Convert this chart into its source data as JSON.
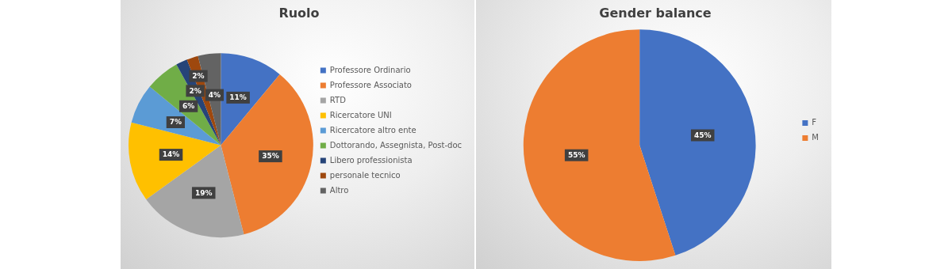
{
  "chart_data": [
    {
      "type": "pie",
      "title": "Ruolo",
      "categories": [
        "Professore Ordinario",
        "Professore Associato",
        "RTD",
        "Ricercatore UNI",
        "Ricercatore altro ente",
        "Dottorando, Assegnista, Post-doc",
        "Libero professionista",
        "personale tecnico",
        "Altro"
      ],
      "values": [
        11,
        35,
        19,
        14,
        7,
        6,
        2,
        2,
        4
      ],
      "colors": [
        "#4472c4",
        "#ed7d31",
        "#a5a5a5",
        "#ffc000",
        "#5b9bd5",
        "#70ad47",
        "#264478",
        "#9e480e",
        "#636363"
      ],
      "value_labels": [
        "11%",
        "35%",
        "19%",
        "14%",
        "7%",
        "6%",
        "2%",
        "2%",
        "4%"
      ],
      "legend": "right"
    },
    {
      "type": "pie",
      "title": "Gender balance",
      "categories": [
        "F",
        "M"
      ],
      "values": [
        45,
        55
      ],
      "colors": [
        "#4472c4",
        "#ed7d31"
      ],
      "value_labels": [
        "45%",
        "55%"
      ],
      "legend": "right"
    }
  ]
}
